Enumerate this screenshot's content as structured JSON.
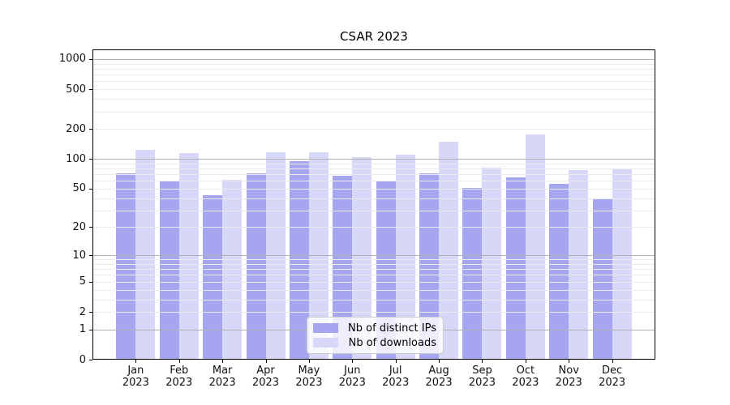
{
  "figure": {
    "background": "#ffffff"
  },
  "chart_data": {
    "type": "bar",
    "title": "CSAR 2023",
    "categories": [
      "Jan 2023",
      "Feb 2023",
      "Mar 2023",
      "Apr 2023",
      "May 2023",
      "Jun 2023",
      "Jul 2023",
      "Aug 2023",
      "Sep 2023",
      "Oct 2023",
      "Nov 2023",
      "Dec 2023"
    ],
    "series": [
      {
        "name": "Nb of distinct IPs",
        "color": "#a5a5f0",
        "values": [
          72,
          59,
          43,
          71,
          94,
          67,
          60,
          71,
          51,
          65,
          56,
          39
        ]
      },
      {
        "name": "Nb of downloads",
        "color": "#d7d7f8",
        "values": [
          123,
          114,
          61,
          116,
          116,
          104,
          111,
          148,
          82,
          175,
          77,
          80
        ]
      }
    ],
    "xlabel": "",
    "ylabel": "",
    "y_axis": {
      "scale": "log1p",
      "range": [
        0,
        1250
      ],
      "ticks": [
        {
          "label": "1000",
          "value": 1000
        },
        {
          "label": "500",
          "value": 500
        },
        {
          "label": "200",
          "value": 200
        },
        {
          "label": "100",
          "value": 100
        },
        {
          "label": "50",
          "value": 50
        },
        {
          "label": "20",
          "value": 20
        },
        {
          "label": "10",
          "value": 10
        },
        {
          "label": "5",
          "value": 5
        },
        {
          "label": "2",
          "value": 2
        },
        {
          "label": "1",
          "value": 1
        },
        {
          "label": "0",
          "value": 0
        }
      ]
    },
    "grid": {
      "major_values": [
        1,
        10,
        100,
        1000
      ],
      "minor_step_decades": [
        1,
        10,
        100
      ],
      "major_color": "#b1b1b1",
      "minor_color": "#ebebeb",
      "position": "above-bars"
    },
    "legend": {
      "position": "lower-center"
    }
  }
}
